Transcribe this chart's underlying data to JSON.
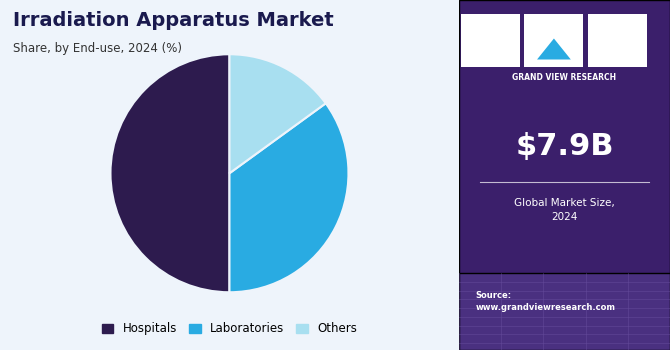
{
  "title": "Irradiation Apparatus Market",
  "subtitle": "Share, by End-use, 2024 (%)",
  "slices": [
    0.5,
    0.35,
    0.15
  ],
  "labels": [
    "Hospitals",
    "Laboratories",
    "Others"
  ],
  "colors": [
    "#2d1b4e",
    "#29abe2",
    "#a8dff0"
  ],
  "startangle": 90,
  "left_bg": "#eef4fb",
  "right_bg": "#3b1f6b",
  "market_size": "$7.9B",
  "market_label": "Global Market Size,\n2024",
  "source_label": "Source:\nwww.grandviewresearch.com",
  "title_color": "#1a1a4e",
  "subtitle_color": "#333333",
  "legend_colors": [
    "#2d1b4e",
    "#29abe2",
    "#a8dff0"
  ]
}
